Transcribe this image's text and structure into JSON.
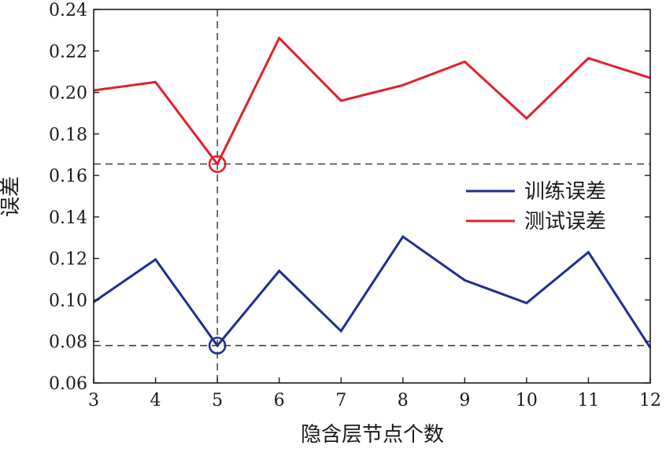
{
  "chart_data": {
    "type": "line",
    "title": "",
    "xlabel": "隐含层节点个数",
    "ylabel": "误差",
    "xlim": [
      3,
      12
    ],
    "ylim": [
      0.06,
      0.24
    ],
    "x": [
      3,
      4,
      5,
      6,
      7,
      8,
      9,
      10,
      11,
      12
    ],
    "x_tick_labels": [
      "3",
      "4",
      "5",
      "6",
      "7",
      "8",
      "9",
      "10",
      "11",
      "12"
    ],
    "y_ticks": [
      0.06,
      0.08,
      0.1,
      0.12,
      0.14,
      0.16,
      0.18,
      0.2,
      0.22,
      0.24
    ],
    "y_tick_labels": [
      "0.06",
      "0.08",
      "0.10",
      "0.12",
      "0.14",
      "0.16",
      "0.18",
      "0.20",
      "0.22",
      "0.24"
    ],
    "grid": false,
    "legend_position": "right",
    "series": [
      {
        "name": "训练误差",
        "color": "#1f2f8f",
        "values": [
          0.099,
          0.1195,
          0.078,
          0.114,
          0.085,
          0.1305,
          0.1095,
          0.0985,
          0.123,
          0.077
        ]
      },
      {
        "name": "测试误差",
        "color": "#e2202a",
        "values": [
          0.201,
          0.205,
          0.1655,
          0.2262,
          0.196,
          0.2035,
          0.2148,
          0.1875,
          0.2165,
          0.207
        ]
      }
    ],
    "annotations": {
      "optimal_x": 5,
      "reference_lines": [
        {
          "series": "训练误差",
          "y": 0.078
        },
        {
          "series": "测试误差",
          "y": 0.1655
        }
      ]
    }
  }
}
